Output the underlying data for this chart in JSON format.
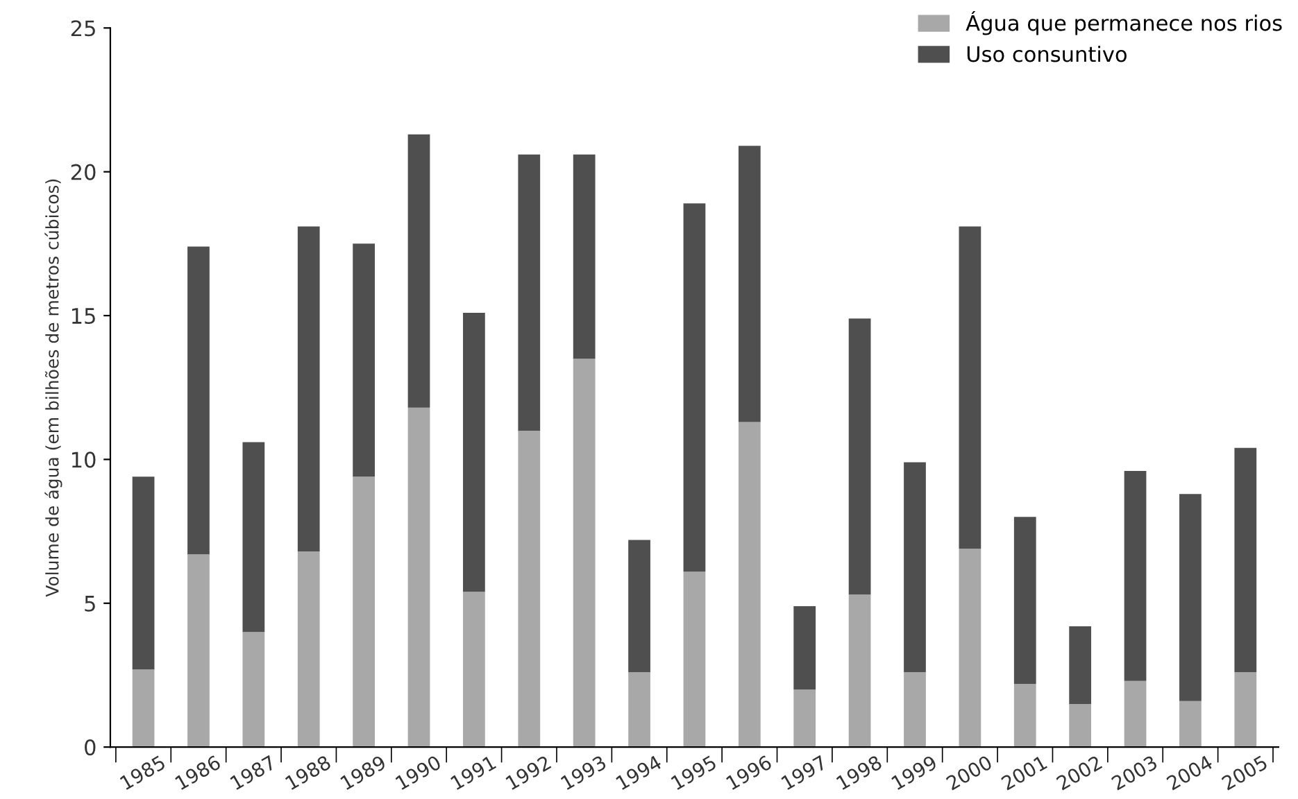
{
  "chart_data": {
    "type": "bar",
    "stacked": true,
    "ylabel": "Volume de água (em bilhões de metros cúbicos)",
    "categories": [
      "1985",
      "1986",
      "1987",
      "1988",
      "1989",
      "1990",
      "1991",
      "1992",
      "1993",
      "1994",
      "1995",
      "1996",
      "1997",
      "1998",
      "1999",
      "2000",
      "2001",
      "2002",
      "2003",
      "2004",
      "2005"
    ],
    "series": [
      {
        "name": "Água que permanece nos rios",
        "color": "#a8a8a8",
        "values": [
          2.7,
          6.7,
          4.0,
          6.8,
          9.4,
          11.8,
          5.4,
          11.0,
          13.5,
          2.6,
          6.1,
          11.3,
          2.0,
          5.3,
          2.6,
          6.9,
          2.2,
          1.5,
          2.3,
          1.6,
          2.6
        ]
      },
      {
        "name": "Uso consuntivo",
        "color": "#4f4f4f",
        "values": [
          6.7,
          10.7,
          6.6,
          11.3,
          8.1,
          9.5,
          9.7,
          9.6,
          7.1,
          4.6,
          12.8,
          9.6,
          2.9,
          9.6,
          7.3,
          11.2,
          5.8,
          2.7,
          7.3,
          7.2,
          7.8
        ]
      }
    ],
    "ylim": [
      0,
      25
    ],
    "yticks": [
      0,
      5,
      10,
      15,
      20,
      25
    ],
    "grid": false,
    "legend": "top right"
  }
}
